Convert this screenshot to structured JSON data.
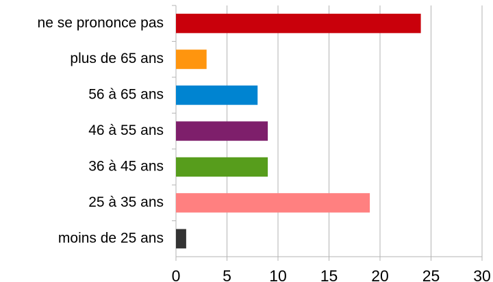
{
  "chart_data": {
    "type": "hbar",
    "categories": [
      "ne se prononce pas",
      "plus de 65 ans",
      "56 à 65 ans",
      "46 à 55 ans",
      "36 à 45 ans",
      "25 à 35 ans",
      "moins de 25 ans"
    ],
    "values": [
      24,
      3,
      8,
      9,
      9,
      19,
      1
    ],
    "colors": [
      "#c9000b",
      "#ff950e",
      "#0084d1",
      "#7e1f6b",
      "#579d1c",
      "#ff8080",
      "#333333"
    ],
    "xlim": [
      0,
      30
    ],
    "xticks": [
      0,
      5,
      10,
      15,
      20,
      25,
      30
    ],
    "grid": true
  }
}
